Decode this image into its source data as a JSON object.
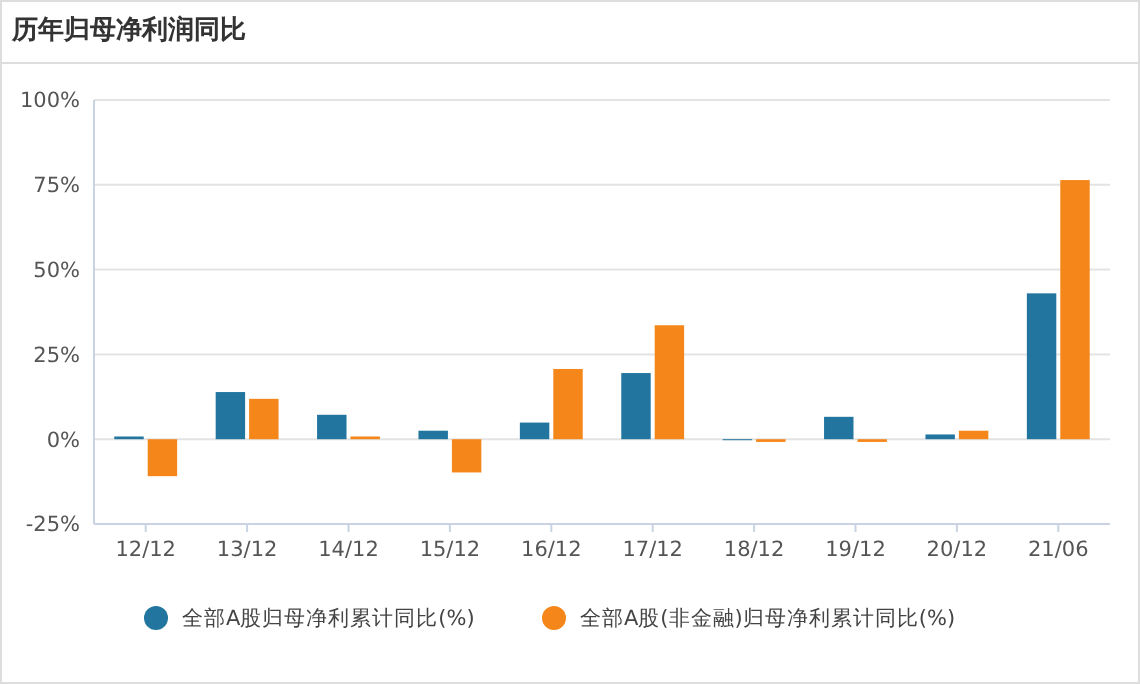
{
  "chart_data": {
    "type": "bar",
    "title": "历年归母净利润同比",
    "categories": [
      "12/12",
      "13/12",
      "14/12",
      "15/12",
      "16/12",
      "17/12",
      "18/12",
      "19/12",
      "20/12",
      "21/06"
    ],
    "series": [
      {
        "name": "全部A股归母净利累计同比(%)",
        "color": "#21759f",
        "values": [
          0.8,
          13.9,
          7.2,
          2.5,
          4.9,
          19.5,
          -0.3,
          6.6,
          1.4,
          43
        ]
      },
      {
        "name": "全部A股(非金融)归母净利累计同比(%)",
        "color": "#f5871a",
        "values": [
          -10.9,
          11.9,
          0.8,
          -9.8,
          20.7,
          33.6,
          -0.8,
          -0.8,
          2.5,
          76.4
        ]
      }
    ],
    "ylim": [
      -25,
      100
    ],
    "yticks": [
      {
        "value": -25,
        "label": "-25%"
      },
      {
        "value": 0,
        "label": "0%"
      },
      {
        "value": 25,
        "label": "25%"
      },
      {
        "value": 50,
        "label": "50%"
      },
      {
        "value": 75,
        "label": "75%"
      },
      {
        "value": 100,
        "label": "100%"
      }
    ],
    "grid": "y",
    "legend": "bottom"
  }
}
